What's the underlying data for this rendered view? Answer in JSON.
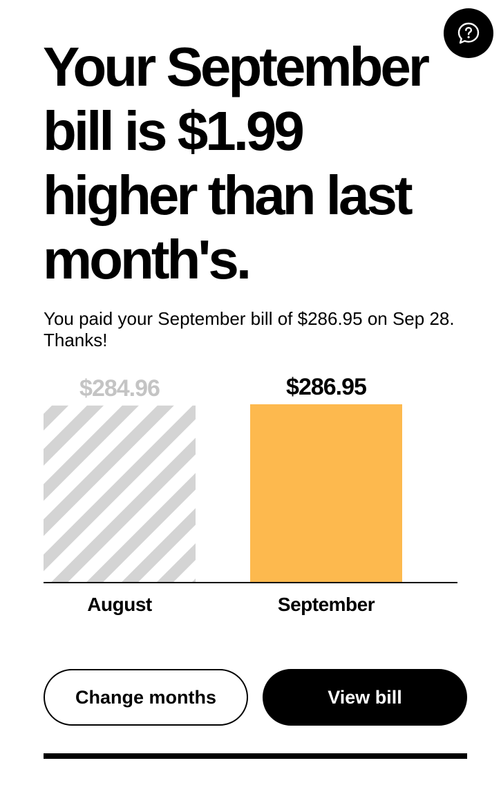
{
  "header": {
    "headline": "Your September bill is $1.99 higher than last month's.",
    "subtext": "You paid your September bill of $286.95 on Sep 28. Thanks!",
    "help_icon": "question-mark-chat-icon"
  },
  "chart_data": {
    "type": "bar",
    "categories": [
      "August",
      "September"
    ],
    "values": [
      284.96,
      286.95
    ],
    "value_labels": [
      "$284.96",
      "$286.95"
    ],
    "ylim": [
      0,
      286.95
    ],
    "colors": [
      "#d4d4d4",
      "#fdb94e"
    ],
    "styles": [
      "striped",
      "solid"
    ],
    "grid": false
  },
  "actions": {
    "change_months_label": "Change months",
    "view_bill_label": "View bill"
  },
  "colors": {
    "accent": "#fdb94e",
    "muted_bar": "#d4d4d4",
    "muted_text": "#c4c4c4",
    "text": "#000000",
    "background": "#ffffff"
  }
}
